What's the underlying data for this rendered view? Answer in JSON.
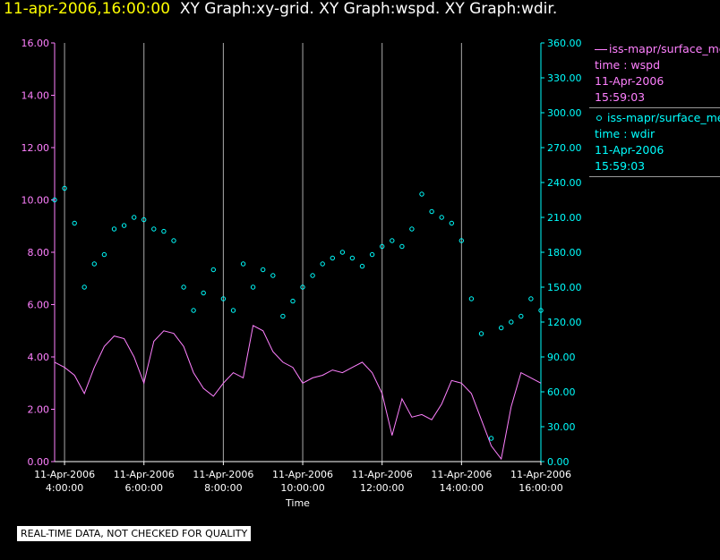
{
  "header": {
    "date_time": "11-apr-2006,16:00:00",
    "graphs": "XY Graph:xy-grid.  XY Graph:wspd.  XY Graph:wdir."
  },
  "colors": {
    "wspd": "#ff80ff",
    "wdir": "#00ffff",
    "grid": "#aaaaaa",
    "axis_text": "#ffffff"
  },
  "legend": {
    "wspd": {
      "name": "iss-mapr/surface_met",
      "field": "time : wspd",
      "date": "11-Apr-2006",
      "time": "15:59:03"
    },
    "wdir": {
      "name": "iss-mapr/surface_met",
      "field": "time : wdir",
      "date": "11-Apr-2006",
      "time": "15:59:03"
    }
  },
  "note": "REAL-TIME DATA, NOT CHECKED FOR QUALITY",
  "chart_data": {
    "type": "line",
    "xlabel": "Time",
    "x_range_hours": [
      3.75,
      16.0
    ],
    "x_ticks": [
      {
        "hour": 4,
        "date": "11-Apr-2006",
        "time": "4:00:00"
      },
      {
        "hour": 6,
        "date": "11-Apr-2006",
        "time": "6:00:00"
      },
      {
        "hour": 8,
        "date": "11-Apr-2006",
        "time": "8:00:00"
      },
      {
        "hour": 10,
        "date": "11-Apr-2006",
        "time": "10:00:00"
      },
      {
        "hour": 12,
        "date": "11-Apr-2006",
        "time": "12:00:00"
      },
      {
        "hour": 14,
        "date": "11-Apr-2006",
        "time": "14:00:00"
      },
      {
        "hour": 16,
        "date": "11-Apr-2006",
        "time": "16:00:00"
      }
    ],
    "y_left": {
      "range": [
        0,
        16
      ],
      "ticks": [
        "0.00",
        "2.00",
        "4.00",
        "6.00",
        "8.00",
        "10.00",
        "12.00",
        "14.00",
        "16.00"
      ]
    },
    "y_right": {
      "range": [
        0,
        360
      ],
      "ticks": [
        "0.00",
        "30.00",
        "60.00",
        "90.00",
        "120.00",
        "150.00",
        "180.00",
        "210.00",
        "240.00",
        "270.00",
        "300.00",
        "330.00",
        "360.00"
      ]
    },
    "grid": "vertical",
    "series": [
      {
        "name": "wspd",
        "axis": "left",
        "style": "line",
        "x": [
          3.75,
          4.0,
          4.25,
          4.5,
          4.75,
          5.0,
          5.25,
          5.5,
          5.75,
          6.0,
          6.25,
          6.5,
          6.75,
          7.0,
          7.25,
          7.5,
          7.75,
          8.0,
          8.25,
          8.5,
          8.75,
          9.0,
          9.25,
          9.5,
          9.75,
          10.0,
          10.25,
          10.5,
          10.75,
          11.0,
          11.25,
          11.5,
          11.75,
          12.0,
          12.25,
          12.5,
          12.75,
          13.0,
          13.25,
          13.5,
          13.75,
          14.0,
          14.25,
          14.5,
          14.75,
          15.0,
          15.25,
          15.5,
          15.75,
          16.0
        ],
        "y": [
          3.8,
          3.6,
          3.3,
          2.6,
          3.6,
          4.4,
          4.8,
          4.7,
          4.0,
          3.0,
          4.6,
          5.0,
          4.9,
          4.4,
          3.4,
          2.8,
          2.5,
          3.0,
          3.4,
          3.2,
          5.2,
          5.0,
          4.2,
          3.8,
          3.6,
          3.0,
          3.2,
          3.3,
          3.5,
          3.4,
          3.6,
          3.8,
          3.4,
          2.6,
          1.0,
          2.4,
          1.7,
          1.8,
          1.6,
          2.2,
          3.1,
          3.0,
          2.6,
          1.6,
          0.6,
          0.1,
          2.1,
          3.4,
          3.2,
          3.0
        ]
      },
      {
        "name": "wdir",
        "axis": "right",
        "style": "markers",
        "x": [
          3.75,
          4.0,
          4.25,
          4.5,
          4.75,
          5.0,
          5.25,
          5.5,
          5.75,
          6.0,
          6.25,
          6.5,
          6.75,
          7.0,
          7.25,
          7.5,
          7.75,
          8.0,
          8.25,
          8.5,
          8.75,
          9.0,
          9.25,
          9.5,
          9.75,
          10.0,
          10.25,
          10.5,
          10.75,
          11.0,
          11.25,
          11.5,
          11.75,
          12.0,
          12.25,
          12.5,
          12.75,
          13.0,
          13.25,
          13.5,
          13.75,
          14.0,
          14.25,
          14.5,
          14.75,
          15.0,
          15.25,
          15.5,
          15.75,
          16.0
        ],
        "y": [
          225,
          235,
          205,
          150,
          170,
          178,
          200,
          203,
          210,
          208,
          200,
          198,
          190,
          150,
          130,
          145,
          165,
          140,
          130,
          170,
          150,
          165,
          160,
          125,
          138,
          150,
          160,
          170,
          175,
          180,
          175,
          168,
          178,
          185,
          190,
          185,
          200,
          230,
          215,
          210,
          205,
          190,
          140,
          110,
          20,
          115,
          120,
          125,
          140,
          130
        ]
      }
    ]
  }
}
